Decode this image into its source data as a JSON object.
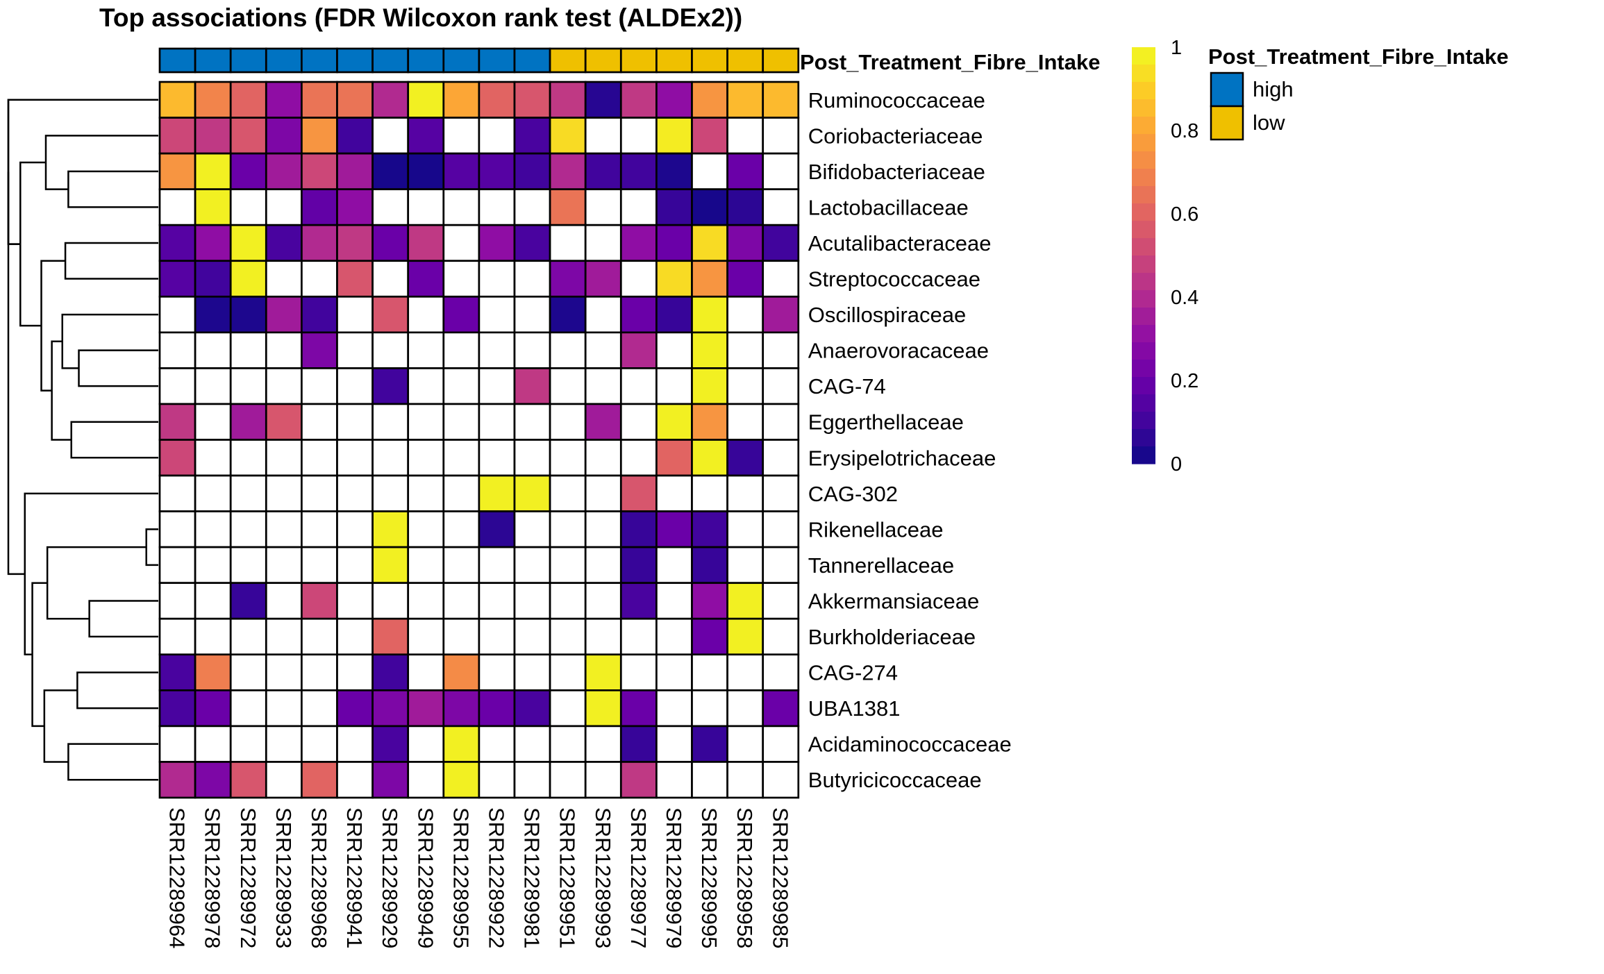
{
  "chart_data": {
    "type": "heatmap",
    "title": "Top associations (FDR Wilcoxon rank test (ALDEx2))",
    "annotation": {
      "name": "Post_Treatment_Fibre_Intake",
      "levels": [
        {
          "label": "high",
          "color": "#0073C2"
        },
        {
          "label": "low",
          "color": "#EFC000"
        }
      ],
      "groups": [
        "high",
        "high",
        "high",
        "high",
        "high",
        "high",
        "high",
        "high",
        "high",
        "high",
        "high",
        "low",
        "low",
        "low",
        "low",
        "low",
        "low",
        "low"
      ]
    },
    "columns": [
      "SRR12289964",
      "SRR12289978",
      "SRR12289972",
      "SRR12289933",
      "SRR12289968",
      "SRR12289941",
      "SRR12289929",
      "SRR12289949",
      "SRR12289955",
      "SRR12289922",
      "SRR12289981",
      "SRR12289951",
      "SRR12289993",
      "SRR12289977",
      "SRR12289979",
      "SRR12289995",
      "SRR12289958",
      "SRR12289985"
    ],
    "rows": [
      "Ruminococcaceae",
      "Coriobacteriaceae",
      "Bifidobacteriaceae",
      "Lactobacillaceae",
      "Acutalibacteraceae",
      "Streptococcaceae",
      "Oscillospiraceae",
      "Anaerovoracaceae",
      "CAG-74",
      "Eggerthellaceae",
      "Erysipelotrichaceae",
      "CAG-302",
      "Rikenellaceae",
      "Tannerellaceae",
      "Akkermansiaceae",
      "Burkholderiaceae",
      "CAG-274",
      "UBA1381",
      "Acidaminococcaceae",
      "Butyricicoccaceae"
    ],
    "values": [
      [
        0.85,
        0.7,
        0.6,
        0.3,
        0.65,
        0.65,
        0.4,
        0.98,
        0.8,
        0.6,
        0.55,
        0.45,
        0.05,
        0.45,
        0.3,
        0.75,
        0.85,
        0.85
      ],
      [
        0.5,
        0.45,
        0.55,
        0.25,
        0.75,
        0.1,
        null,
        0.15,
        null,
        null,
        0.12,
        0.93,
        null,
        null,
        0.97,
        0.5,
        null,
        null
      ],
      [
        0.75,
        0.98,
        0.2,
        0.35,
        0.5,
        0.35,
        0.02,
        0.02,
        0.15,
        0.15,
        0.1,
        0.4,
        0.1,
        0.1,
        0.03,
        null,
        0.2,
        null
      ],
      [
        null,
        0.98,
        null,
        null,
        0.18,
        0.3,
        null,
        null,
        null,
        null,
        null,
        0.65,
        null,
        null,
        0.08,
        0.02,
        0.06,
        null
      ],
      [
        0.15,
        0.3,
        0.98,
        0.12,
        0.4,
        0.45,
        0.2,
        0.45,
        null,
        0.3,
        0.12,
        null,
        null,
        0.3,
        0.2,
        0.93,
        0.25,
        0.1
      ],
      [
        0.15,
        0.1,
        0.98,
        null,
        null,
        0.55,
        null,
        0.2,
        null,
        null,
        null,
        0.25,
        0.35,
        null,
        0.93,
        0.75,
        0.2,
        null
      ],
      [
        null,
        0.03,
        0.03,
        0.35,
        0.1,
        null,
        0.55,
        null,
        0.2,
        null,
        null,
        0.03,
        null,
        0.2,
        0.08,
        0.98,
        null,
        0.35
      ],
      [
        null,
        null,
        null,
        null,
        0.25,
        null,
        null,
        null,
        null,
        null,
        null,
        null,
        null,
        0.4,
        null,
        0.98,
        null,
        null
      ],
      [
        null,
        null,
        null,
        null,
        null,
        null,
        0.1,
        null,
        null,
        null,
        0.45,
        null,
        null,
        null,
        null,
        0.98,
        null,
        null
      ],
      [
        0.45,
        null,
        0.35,
        0.55,
        null,
        null,
        null,
        null,
        null,
        null,
        null,
        null,
        0.35,
        null,
        0.98,
        0.75,
        null,
        null
      ],
      [
        0.5,
        null,
        null,
        null,
        null,
        null,
        null,
        null,
        null,
        null,
        null,
        null,
        null,
        null,
        0.6,
        0.98,
        0.08,
        null
      ],
      [
        null,
        null,
        null,
        null,
        null,
        null,
        null,
        null,
        null,
        0.98,
        0.98,
        null,
        null,
        0.55,
        null,
        null,
        null,
        null
      ],
      [
        null,
        null,
        null,
        null,
        null,
        null,
        0.98,
        null,
        null,
        0.06,
        null,
        null,
        null,
        0.08,
        0.2,
        0.1,
        null,
        null
      ],
      [
        null,
        null,
        null,
        null,
        null,
        null,
        0.98,
        null,
        null,
        null,
        null,
        null,
        null,
        0.08,
        null,
        0.08,
        null,
        null
      ],
      [
        null,
        null,
        0.08,
        null,
        0.5,
        null,
        null,
        null,
        null,
        null,
        null,
        null,
        null,
        0.12,
        null,
        0.3,
        0.98,
        null
      ],
      [
        null,
        null,
        null,
        null,
        null,
        null,
        0.6,
        null,
        null,
        null,
        null,
        null,
        null,
        null,
        null,
        0.2,
        0.98,
        null
      ],
      [
        0.12,
        0.68,
        null,
        null,
        null,
        null,
        0.1,
        null,
        0.72,
        null,
        null,
        null,
        0.98,
        null,
        null,
        null,
        null,
        null
      ],
      [
        0.12,
        0.2,
        null,
        null,
        null,
        0.2,
        0.25,
        0.35,
        0.25,
        0.2,
        0.12,
        null,
        0.98,
        0.2,
        null,
        null,
        null,
        0.2
      ],
      [
        null,
        null,
        null,
        null,
        null,
        null,
        0.12,
        null,
        0.98,
        null,
        null,
        null,
        null,
        0.08,
        null,
        0.08,
        null,
        null
      ],
      [
        0.4,
        0.25,
        0.55,
        null,
        0.6,
        null,
        0.25,
        null,
        0.98,
        null,
        null,
        null,
        null,
        0.45,
        null,
        null,
        null,
        null
      ]
    ],
    "colorbar": {
      "range": [
        0,
        1
      ],
      "ticks": [
        "0",
        "0.2",
        "0.4",
        "0.6",
        "0.8",
        "1"
      ]
    }
  }
}
